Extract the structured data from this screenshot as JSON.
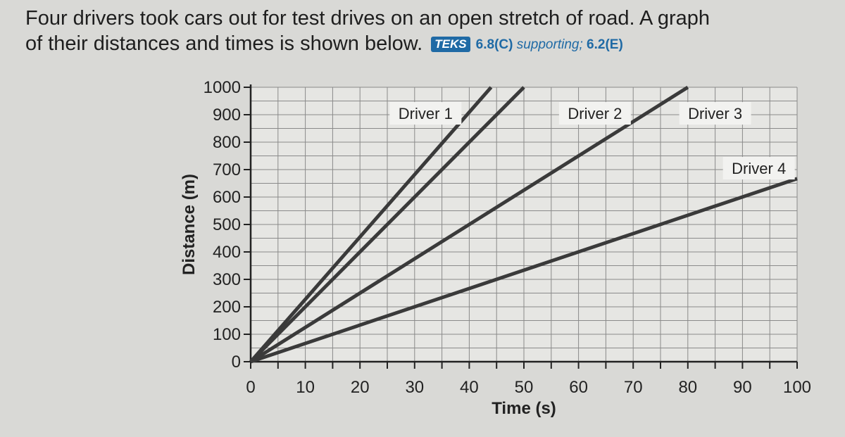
{
  "question": {
    "line1": "Four drivers took cars out for test drives on an open stretch of road. A graph",
    "line2": "of their distances and times is shown below.",
    "teks_badge": "TEKS",
    "standard_main": "6.8(C)",
    "standard_note": "supporting;",
    "standard_extra": "6.2(E)"
  },
  "chart_data": {
    "type": "line",
    "title": "",
    "xlabel": "Time (s)",
    "ylabel": "Distance (m)",
    "xlim": [
      0,
      100
    ],
    "ylim": [
      0,
      1000
    ],
    "x_ticks": [
      0,
      10,
      20,
      30,
      40,
      50,
      60,
      70,
      80,
      90,
      100
    ],
    "y_ticks": [
      0,
      100,
      200,
      300,
      400,
      500,
      600,
      700,
      800,
      900,
      1000
    ],
    "grid": true,
    "series": [
      {
        "name": "Driver 1",
        "x": [
          0,
          44
        ],
        "y": [
          0,
          1000
        ],
        "color": "#3a3a3a"
      },
      {
        "name": "Driver 2",
        "x": [
          0,
          50
        ],
        "y": [
          0,
          1000
        ],
        "color": "#3a3a3a"
      },
      {
        "name": "Driver 3",
        "x": [
          0,
          80
        ],
        "y": [
          0,
          1000
        ],
        "color": "#3a3a3a"
      },
      {
        "name": "Driver 4",
        "x": [
          0,
          100
        ],
        "y": [
          0,
          667
        ],
        "color": "#3a3a3a"
      }
    ]
  }
}
